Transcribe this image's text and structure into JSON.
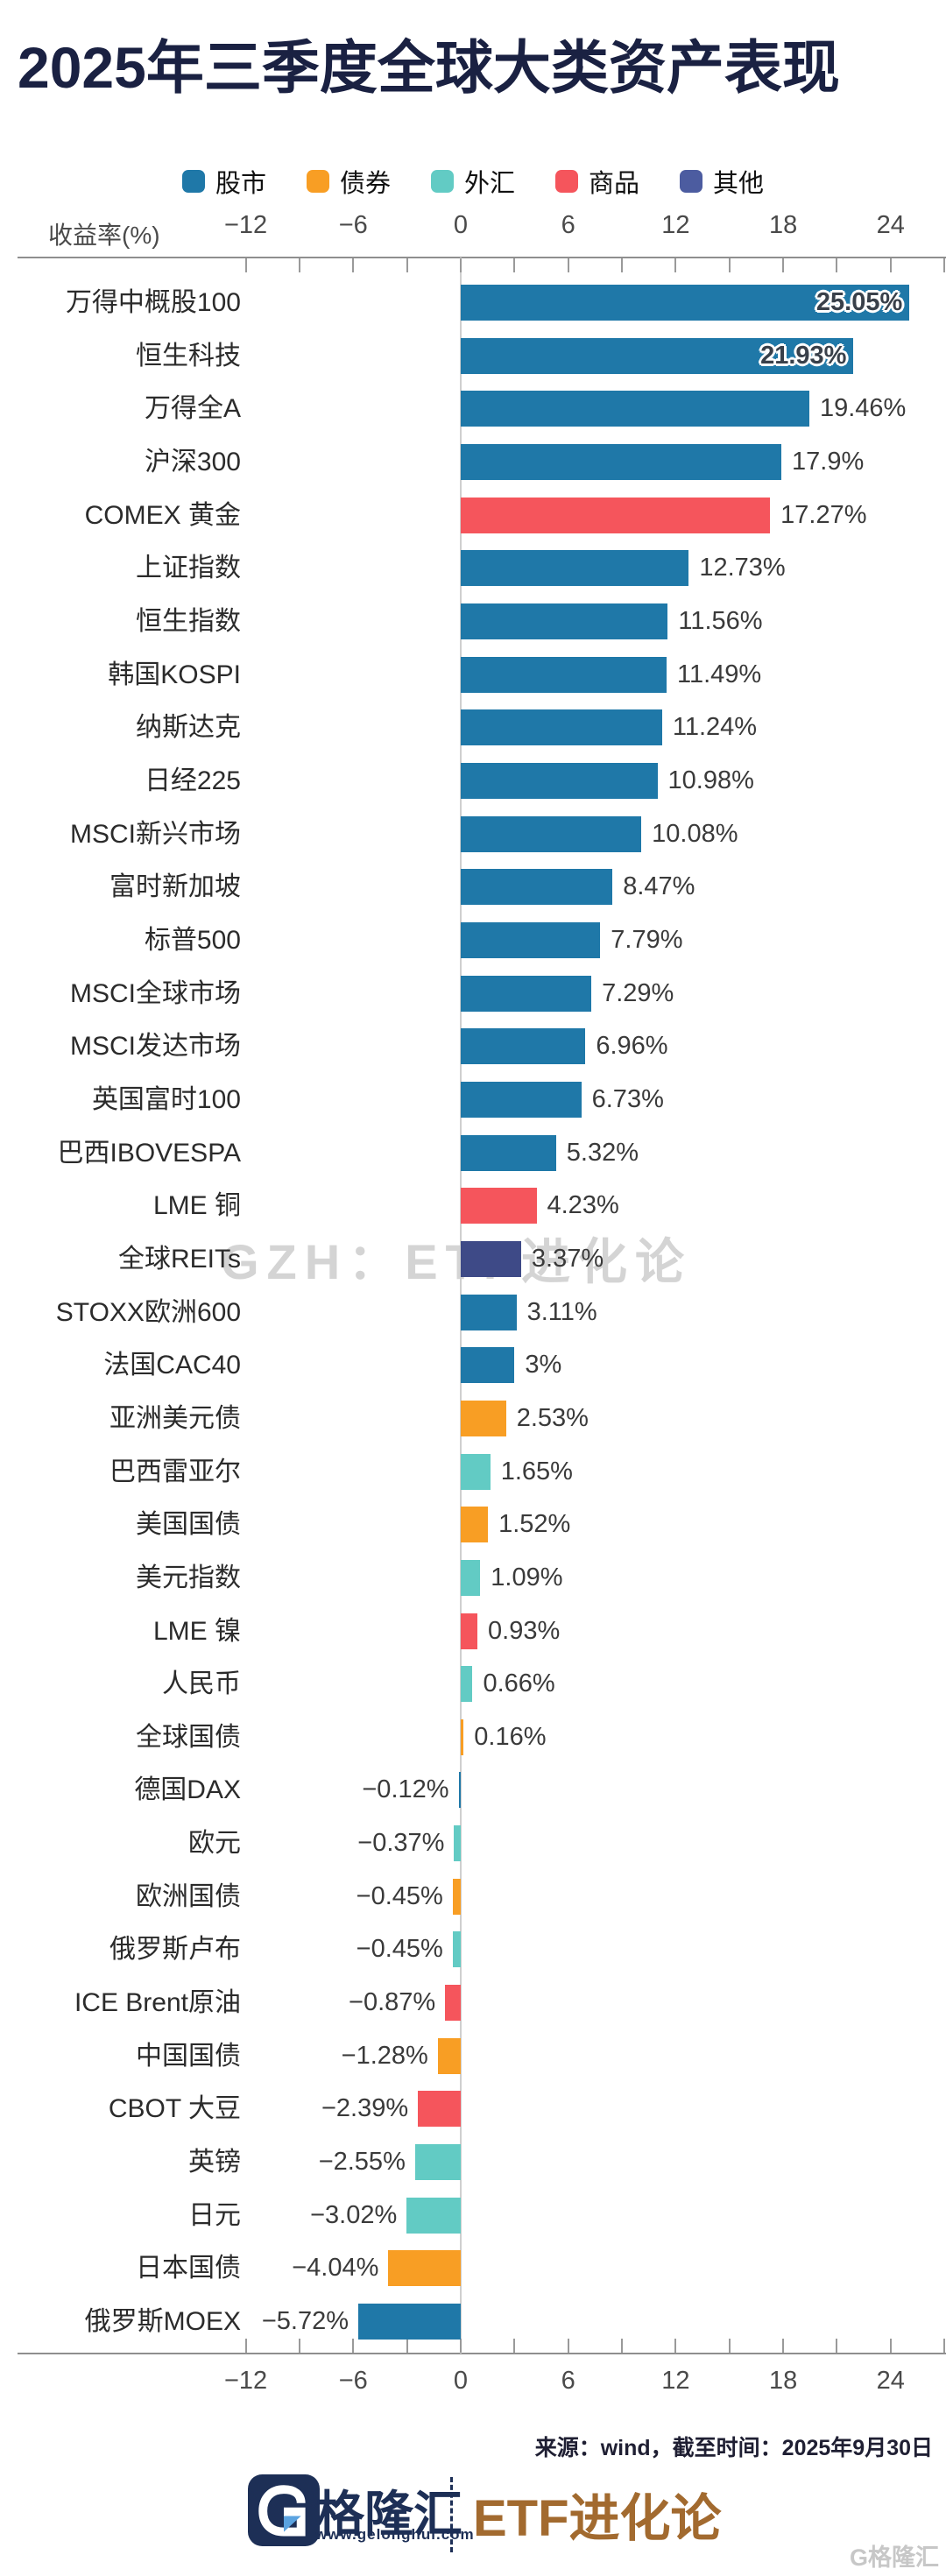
{
  "title": "2025年三季度全球大类资产表现",
  "watermark_center": "GZH：ETF进化论",
  "source_note": "来源：wind，截至时间：2025年9月30日",
  "footer": {
    "brand_name": "格隆汇",
    "brand_url": "www.gelonghui.com",
    "brand_right": "ETF进化论",
    "corner_watermark": "G格隆汇"
  },
  "colors": {
    "title": "#1a2142",
    "brand_navy": "#1d2f56",
    "brand_brown": "#a26a2f",
    "axis": "#8f8f8f"
  },
  "chart_data": {
    "type": "bar",
    "orientation": "horizontal",
    "axis_label": "收益率(%)",
    "grid": false,
    "legend_position": "top-center",
    "xlim": [
      -15,
      27
    ],
    "ticks": [
      {
        "v": -12,
        "label": "−12"
      },
      {
        "v": -6,
        "label": "−6"
      },
      {
        "v": 0,
        "label": "0"
      },
      {
        "v": 6,
        "label": "6"
      },
      {
        "v": 12,
        "label": "12"
      },
      {
        "v": 18,
        "label": "18"
      },
      {
        "v": 24,
        "label": "24"
      }
    ],
    "legend": [
      {
        "label": "股市",
        "color": "#1f78a8"
      },
      {
        "label": "债券",
        "color": "#f89e24"
      },
      {
        "label": "外汇",
        "color": "#62cbc4"
      },
      {
        "label": "商品",
        "color": "#f5555c"
      },
      {
        "label": "其他",
        "color": "#4c5ca0"
      }
    ],
    "bars": [
      {
        "name": "万得中概股100",
        "value": 25.05,
        "label": "25.05%",
        "category": "股市",
        "label_inside": true
      },
      {
        "name": "恒生科技",
        "value": 21.93,
        "label": "21.93%",
        "category": "股市",
        "label_inside": true
      },
      {
        "name": "万得全A",
        "value": 19.46,
        "label": "19.46%",
        "category": "股市"
      },
      {
        "name": "沪深300",
        "value": 17.9,
        "label": "17.9%",
        "category": "股市"
      },
      {
        "name": "COMEX 黄金",
        "value": 17.27,
        "label": "17.27%",
        "category": "商品"
      },
      {
        "name": "上证指数",
        "value": 12.73,
        "label": "12.73%",
        "category": "股市"
      },
      {
        "name": "恒生指数",
        "value": 11.56,
        "label": "11.56%",
        "category": "股市"
      },
      {
        "name": "韩国KOSPI",
        "value": 11.49,
        "label": "11.49%",
        "category": "股市"
      },
      {
        "name": "纳斯达克",
        "value": 11.24,
        "label": "11.24%",
        "category": "股市"
      },
      {
        "name": "日经225",
        "value": 10.98,
        "label": "10.98%",
        "category": "股市"
      },
      {
        "name": "MSCI新兴市场",
        "value": 10.08,
        "label": "10.08%",
        "category": "股市"
      },
      {
        "name": "富时新加坡",
        "value": 8.47,
        "label": "8.47%",
        "category": "股市"
      },
      {
        "name": "标普500",
        "value": 7.79,
        "label": "7.79%",
        "category": "股市"
      },
      {
        "name": "MSCI全球市场",
        "value": 7.29,
        "label": "7.29%",
        "category": "股市"
      },
      {
        "name": "MSCI发达市场",
        "value": 6.96,
        "label": "6.96%",
        "category": "股市"
      },
      {
        "name": "英国富时100",
        "value": 6.73,
        "label": "6.73%",
        "category": "股市"
      },
      {
        "name": "巴西IBOVESPA",
        "value": 5.32,
        "label": "5.32%",
        "category": "股市"
      },
      {
        "name": "LME 铜",
        "value": 4.23,
        "label": "4.23%",
        "category": "商品"
      },
      {
        "name": "全球REITs",
        "value": 3.37,
        "label": "3.37%",
        "category": "其他",
        "color": "#3e4a87"
      },
      {
        "name": "STOXX欧洲600",
        "value": 3.11,
        "label": "3.11%",
        "category": "股市"
      },
      {
        "name": "法国CAC40",
        "value": 3,
        "label": "3%",
        "category": "股市"
      },
      {
        "name": "亚洲美元债",
        "value": 2.53,
        "label": "2.53%",
        "category": "债券"
      },
      {
        "name": "巴西雷亚尔",
        "value": 1.65,
        "label": "1.65%",
        "category": "外汇"
      },
      {
        "name": "美国国债",
        "value": 1.52,
        "label": "1.52%",
        "category": "债券"
      },
      {
        "name": "美元指数",
        "value": 1.09,
        "label": "1.09%",
        "category": "外汇"
      },
      {
        "name": "LME 镍",
        "value": 0.93,
        "label": "0.93%",
        "category": "商品"
      },
      {
        "name": "人民币",
        "value": 0.66,
        "label": "0.66%",
        "category": "外汇"
      },
      {
        "name": "全球国债",
        "value": 0.16,
        "label": "0.16%",
        "category": "债券"
      },
      {
        "name": "德国DAX",
        "value": -0.12,
        "label": "−0.12%",
        "category": "股市"
      },
      {
        "name": "欧元",
        "value": -0.37,
        "label": "−0.37%",
        "category": "外汇"
      },
      {
        "name": "欧洲国债",
        "value": -0.45,
        "label": "−0.45%",
        "category": "债券"
      },
      {
        "name": "俄罗斯卢布",
        "value": -0.45,
        "label": "−0.45%",
        "category": "外汇"
      },
      {
        "name": "ICE Brent原油",
        "value": -0.87,
        "label": "−0.87%",
        "category": "商品"
      },
      {
        "name": "中国国债",
        "value": -1.28,
        "label": "−1.28%",
        "category": "债券"
      },
      {
        "name": "CBOT 大豆",
        "value": -2.39,
        "label": "−2.39%",
        "category": "商品"
      },
      {
        "name": "英镑",
        "value": -2.55,
        "label": "−2.55%",
        "category": "外汇"
      },
      {
        "name": "日元",
        "value": -3.02,
        "label": "−3.02%",
        "category": "外汇"
      },
      {
        "name": "日本国债",
        "value": -4.04,
        "label": "−4.04%",
        "category": "债券"
      },
      {
        "name": "俄罗斯MOEX",
        "value": -5.72,
        "label": "−5.72%",
        "category": "股市"
      }
    ]
  }
}
